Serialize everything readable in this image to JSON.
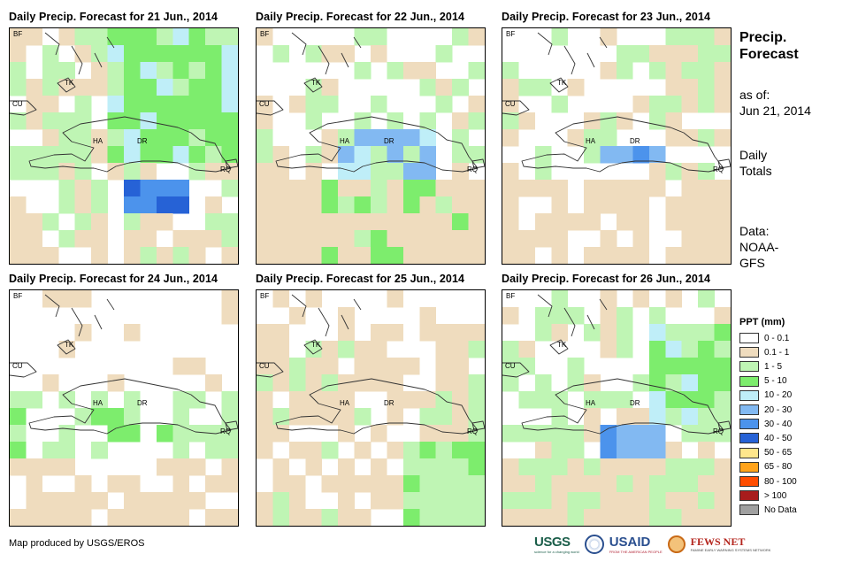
{
  "panels": [
    {
      "title": "Daily Precip. Forecast for 21 Jun., 2014"
    },
    {
      "title": "Daily Precip. Forecast for 22 Jun., 2014"
    },
    {
      "title": "Daily Precip. Forecast for 23 Jun., 2014"
    },
    {
      "title": "Daily Precip. Forecast for 24 Jun., 2014"
    },
    {
      "title": "Daily Precip. Forecast for 25 Jun., 2014"
    },
    {
      "title": "Daily Precip. Forecast for 26 Jun., 2014"
    }
  ],
  "map_labels": {
    "bf": "BF",
    "tk": "TK",
    "cu": "CU",
    "ha": "HA",
    "dr": "DR",
    "rq": "RQ"
  },
  "side": {
    "title_line1": "Precip.",
    "title_line2": "Forecast",
    "asof_line1": "as of:",
    "asof_line2": "Jun 21, 2014",
    "totals_line1": "Daily",
    "totals_line2": "Totals",
    "data_line1": "Data:",
    "data_line2": "NOAA-",
    "data_line3": "GFS"
  },
  "legend": {
    "title": "PPT (mm)",
    "items": [
      {
        "label": "0 - 0.1",
        "color": "#ffffff"
      },
      {
        "label": "0.1 - 1",
        "color": "#efdcbe"
      },
      {
        "label": "1 - 5",
        "color": "#bff5b4"
      },
      {
        "label": "5 - 10",
        "color": "#7ded6d"
      },
      {
        "label": "10 - 20",
        "color": "#bfeef8"
      },
      {
        "label": "20 - 30",
        "color": "#82b9f2"
      },
      {
        "label": "30 - 40",
        "color": "#4c93ec"
      },
      {
        "label": "40 - 50",
        "color": "#2662d6"
      },
      {
        "label": "50 - 65",
        "color": "#ffe68c"
      },
      {
        "label": "65 - 80",
        "color": "#ffa31a"
      },
      {
        "label": "80 - 100",
        "color": "#ff4d00"
      },
      {
        "label": "> 100",
        "color": "#a81c1c"
      },
      {
        "label": "No Data",
        "color": "#a0a0a0"
      }
    ]
  },
  "footer": {
    "credit": "Map produced by USGS/EROS",
    "usgs": "USGS",
    "usgs_sub": "science for a changing world",
    "usaid": "USAID",
    "usaid_sub": "FROM THE AMERICAN PEOPLE",
    "fews": "FEWS NET",
    "fews_sub": "FAMINE EARLY WARNING SYSTEMS NETWORK"
  }
}
